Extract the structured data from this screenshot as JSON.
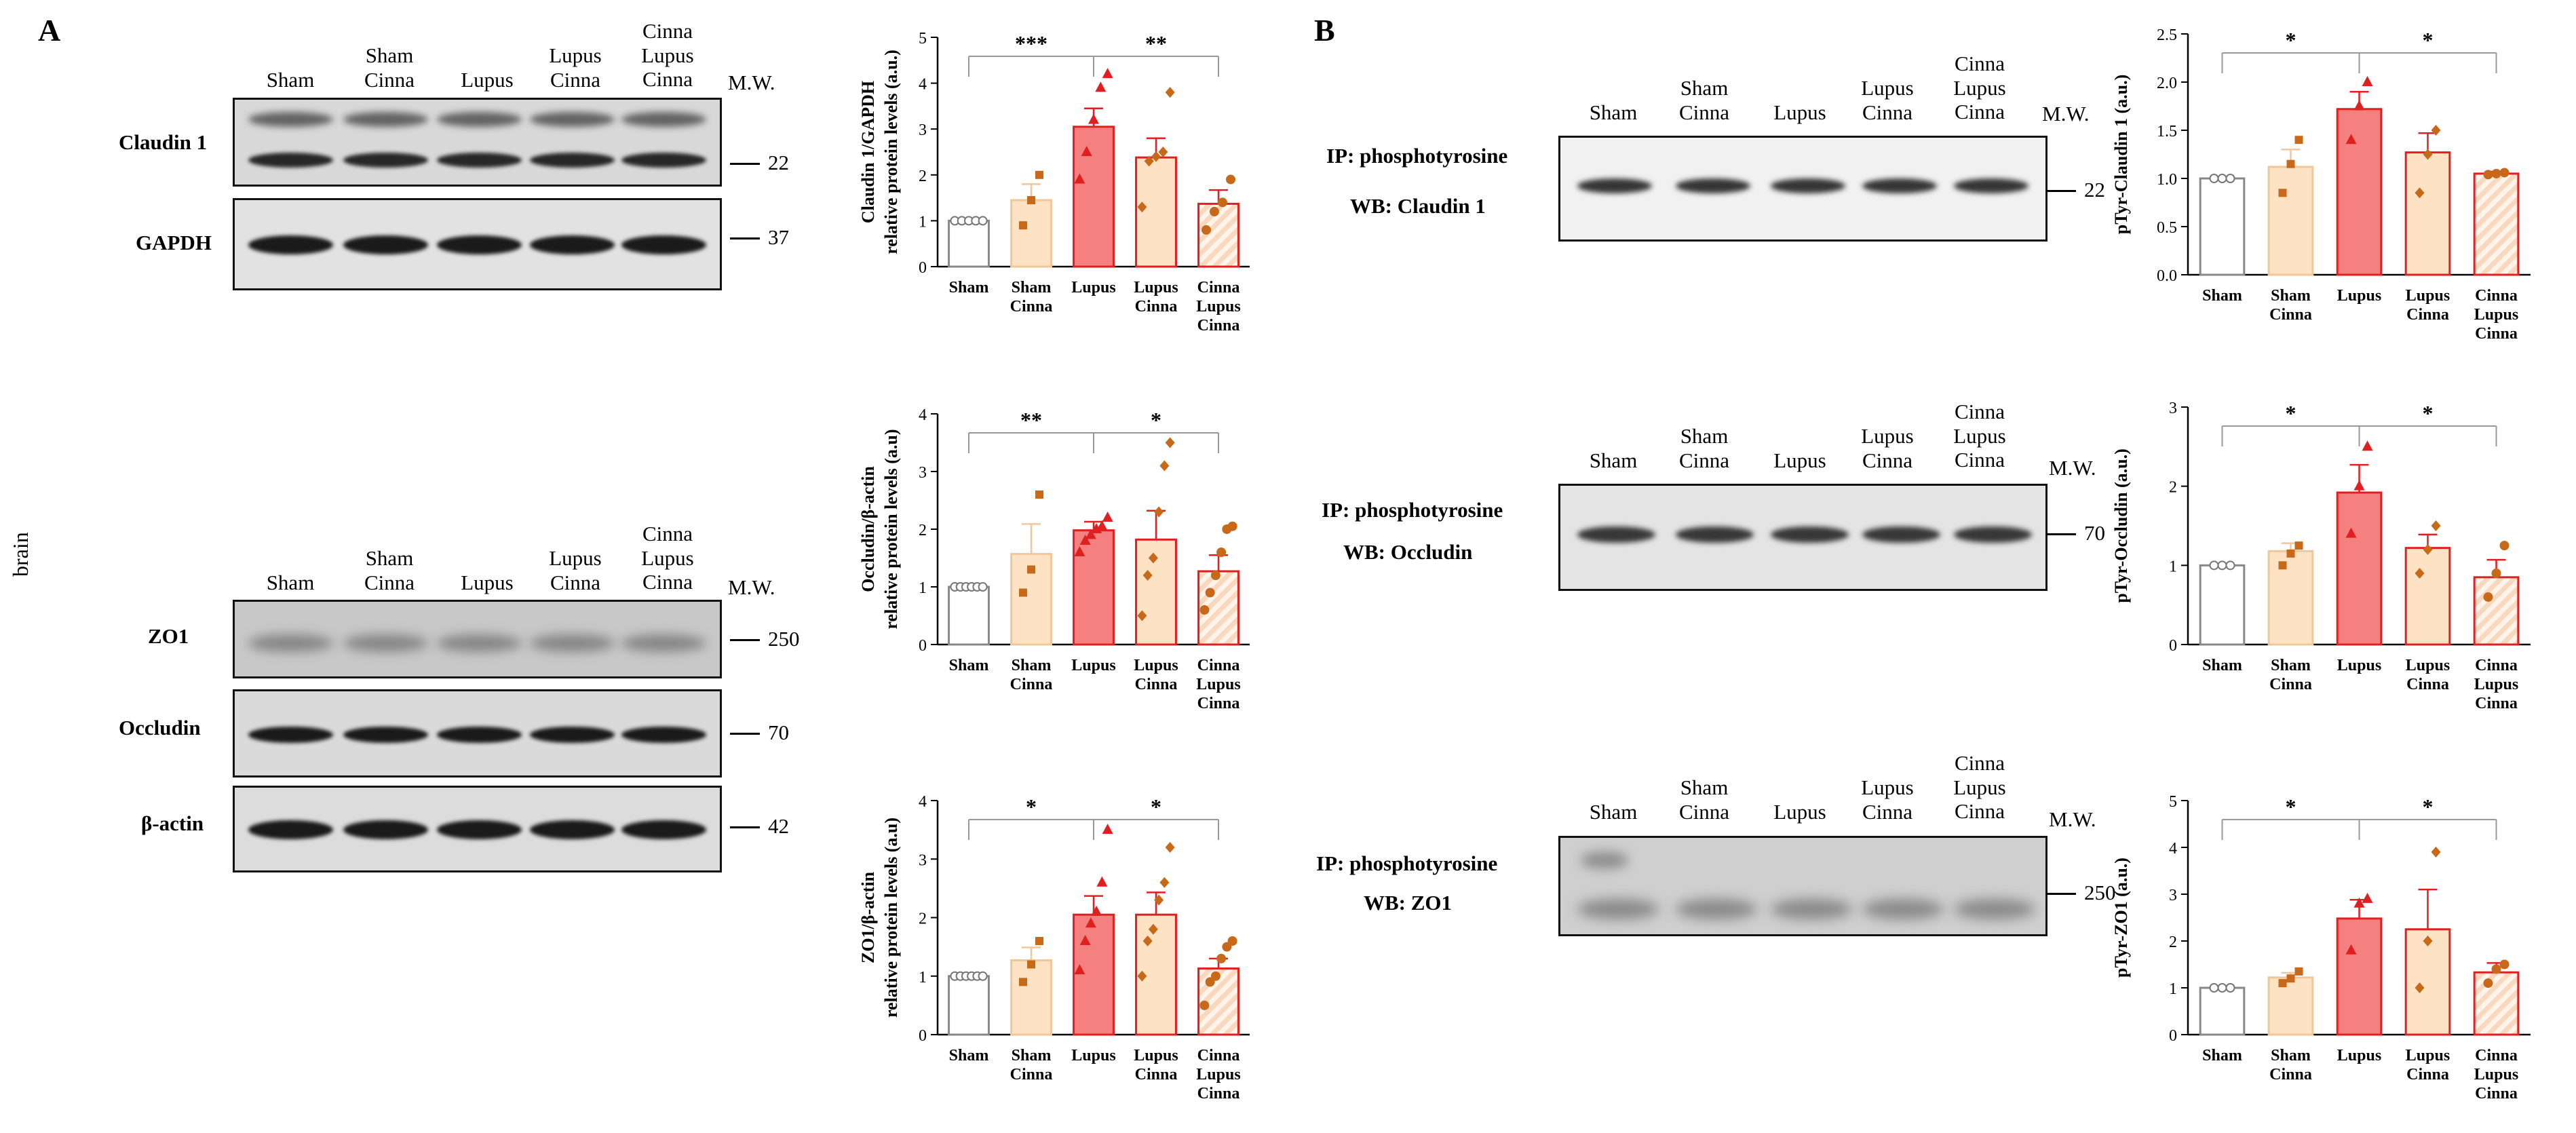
{
  "panels": {
    "a": "A",
    "b": "B"
  },
  "side_label": "brain",
  "lanes": [
    "Sham",
    "Sham\nCinna",
    "Lupus",
    "Lupus\nCinna",
    "Cinna\nLupus\nCinna"
  ],
  "mw_header": "M.W.",
  "blots_a": {
    "claudin": {
      "label": "Claudin 1",
      "mw": "22"
    },
    "gapdh": {
      "label": "GAPDH",
      "mw": "37"
    },
    "zo1": {
      "label": "ZO1",
      "mw": "250"
    },
    "occludin": {
      "label": "Occludin",
      "mw": "70"
    },
    "actin": {
      "label": "β-actin",
      "mw": "42"
    }
  },
  "blots_b": {
    "claudin": {
      "ip": "IP: phosphotyrosine",
      "wb": "WB: Claudin 1",
      "mw": "22"
    },
    "occludin": {
      "ip": "IP: phosphotyrosine",
      "wb": "WB: Occludin",
      "mw": "70"
    },
    "zo1": {
      "ip": "IP: phosphotyrosine",
      "wb": "WB: ZO1",
      "mw": "250"
    }
  },
  "colors": {
    "sham": "#ffffff",
    "sham_cinna": "#fde2c4",
    "lupus": "#f48080",
    "lupus_cinna": "#fde2c4",
    "cinna_lupus_cinna": "#f9d8bd",
    "red": "#e02020",
    "orange": "#c8691a"
  },
  "chart_data": [
    {
      "id": "a1",
      "type": "bar",
      "title": "",
      "ylabel_lines": [
        "Claudin 1/GAPDH",
        "relative protein levels (a.u.)"
      ],
      "categories": [
        "Sham",
        "Sham\nCinna",
        "Lupus",
        "Lupus\nCinna",
        "Cinna\nLupus\nCinna"
      ],
      "ylim": [
        0,
        5
      ],
      "yticks": [
        "0",
        "1",
        "2",
        "3",
        "4",
        "5"
      ],
      "values": [
        1.0,
        1.45,
        3.05,
        2.38,
        1.37
      ],
      "errors": [
        0.0,
        0.35,
        0.4,
        0.42,
        0.3
      ],
      "points": [
        [
          1,
          1,
          1,
          1,
          1
        ],
        [
          0.9,
          1.45,
          2.0
        ],
        [
          1.9,
          2.5,
          3.2,
          3.9,
          4.2
        ],
        [
          1.3,
          2.3,
          2.4,
          2.5,
          3.8
        ],
        [
          0.8,
          1.2,
          1.4,
          1.9
        ]
      ],
      "significance": [
        {
          "from": 0,
          "to": 2,
          "label": "***"
        },
        {
          "from": 2,
          "to": 4,
          "label": "**"
        }
      ]
    },
    {
      "id": "a2",
      "type": "bar",
      "title": "",
      "ylabel_lines": [
        "Occludin/β-actin",
        "relative protein levels (a.u)"
      ],
      "categories": [
        "Sham",
        "Sham\nCinna",
        "Lupus",
        "Lupus\nCinna",
        "Cinna\nLupus\nCinna"
      ],
      "ylim": [
        0,
        4
      ],
      "yticks": [
        "0",
        "1",
        "2",
        "3",
        "4"
      ],
      "values": [
        1.0,
        1.57,
        1.98,
        1.82,
        1.27
      ],
      "errors": [
        0.0,
        0.52,
        0.15,
        0.5,
        0.28
      ],
      "points": [
        [
          1,
          1,
          1,
          1,
          1,
          1
        ],
        [
          0.9,
          1.3,
          2.6
        ],
        [
          1.6,
          1.8,
          1.9,
          2.0,
          2.05,
          2.2
        ],
        [
          0.5,
          1.2,
          1.5,
          2.3,
          3.1,
          3.5
        ],
        [
          0.6,
          0.9,
          1.2,
          1.6,
          2.0,
          2.05
        ]
      ],
      "significance": [
        {
          "from": 0,
          "to": 2,
          "label": "**"
        },
        {
          "from": 2,
          "to": 4,
          "label": "*"
        }
      ]
    },
    {
      "id": "a3",
      "type": "bar",
      "title": "",
      "ylabel_lines": [
        "ZO1/β-actin",
        "relative protein levels (a.u)"
      ],
      "categories": [
        "Sham",
        "Sham\nCinna",
        "Lupus",
        "Lupus\nCinna",
        "Cinna\nLupus\nCinna"
      ],
      "ylim": [
        0,
        4
      ],
      "yticks": [
        "0",
        "1",
        "2",
        "3",
        "4"
      ],
      "values": [
        1.0,
        1.27,
        2.05,
        2.05,
        1.13
      ],
      "errors": [
        0.0,
        0.22,
        0.32,
        0.38,
        0.17
      ],
      "points": [
        [
          1,
          1,
          1,
          1,
          1,
          1
        ],
        [
          0.9,
          1.2,
          1.6
        ],
        [
          1.1,
          1.6,
          1.9,
          2.1,
          2.6,
          3.5
        ],
        [
          1.0,
          1.6,
          1.8,
          2.3,
          2.6,
          3.2
        ],
        [
          0.5,
          0.9,
          1.0,
          1.3,
          1.5,
          1.6
        ]
      ],
      "significance": [
        {
          "from": 0,
          "to": 2,
          "label": "*"
        },
        {
          "from": 2,
          "to": 4,
          "label": "*"
        }
      ]
    },
    {
      "id": "b1",
      "type": "bar",
      "title": "",
      "ylabel_lines": [
        "pTyr-Claudin 1 (a.u.)"
      ],
      "categories": [
        "Sham",
        "Sham\nCinna",
        "Lupus",
        "Lupus\nCinna",
        "Cinna\nLupus\nCinna"
      ],
      "ylim": [
        0,
        2.5
      ],
      "yticks": [
        "0.0",
        "0.5",
        "1.0",
        "1.5",
        "2.0",
        "2.5"
      ],
      "values": [
        1.0,
        1.12,
        1.72,
        1.27,
        1.05
      ],
      "errors": [
        0.0,
        0.18,
        0.18,
        0.2,
        0.02
      ],
      "points": [
        [
          1,
          1,
          1
        ],
        [
          0.85,
          1.15,
          1.4
        ],
        [
          1.4,
          1.75,
          2.0
        ],
        [
          0.85,
          1.25,
          1.5
        ],
        [
          1.04,
          1.05,
          1.06
        ]
      ],
      "significance": [
        {
          "from": 0,
          "to": 2,
          "label": "*"
        },
        {
          "from": 2,
          "to": 4,
          "label": "*"
        }
      ]
    },
    {
      "id": "b2",
      "type": "bar",
      "title": "",
      "ylabel_lines": [
        "pTyr-Occludin (a.u.)"
      ],
      "categories": [
        "Sham",
        "Sham\nCinna",
        "Lupus",
        "Lupus\nCinna",
        "Cinna\nLupus\nCinna"
      ],
      "ylim": [
        0,
        3
      ],
      "yticks": [
        "0",
        "1",
        "2",
        "3"
      ],
      "values": [
        1.0,
        1.18,
        1.92,
        1.22,
        0.85
      ],
      "errors": [
        0.0,
        0.1,
        0.35,
        0.17,
        0.22
      ],
      "points": [
        [
          1,
          1,
          1
        ],
        [
          1.0,
          1.15,
          1.25
        ],
        [
          1.4,
          2.0,
          2.5
        ],
        [
          0.9,
          1.2,
          1.5
        ],
        [
          0.6,
          0.9,
          1.25
        ]
      ],
      "significance": [
        {
          "from": 0,
          "to": 2,
          "label": "*"
        },
        {
          "from": 2,
          "to": 4,
          "label": "*"
        }
      ]
    },
    {
      "id": "b3",
      "type": "bar",
      "title": "",
      "ylabel_lines": [
        "pTyr-ZO1 (a.u.)"
      ],
      "categories": [
        "Sham",
        "Sham\nCinna",
        "Lupus",
        "Lupus\nCinna",
        "Cinna\nLupus\nCinna"
      ],
      "ylim": [
        0,
        5
      ],
      "yticks": [
        "0",
        "1",
        "2",
        "3",
        "4",
        "5"
      ],
      "values": [
        1.0,
        1.22,
        2.48,
        2.25,
        1.33
      ],
      "errors": [
        0.0,
        0.1,
        0.4,
        0.85,
        0.2
      ],
      "points": [
        [
          1,
          1,
          1
        ],
        [
          1.1,
          1.2,
          1.35
        ],
        [
          1.8,
          2.8,
          2.9
        ],
        [
          1.0,
          2.0,
          3.9
        ],
        [
          1.1,
          1.4,
          1.5
        ]
      ],
      "significance": [
        {
          "from": 0,
          "to": 2,
          "label": "*"
        },
        {
          "from": 2,
          "to": 4,
          "label": "*"
        }
      ]
    }
  ]
}
